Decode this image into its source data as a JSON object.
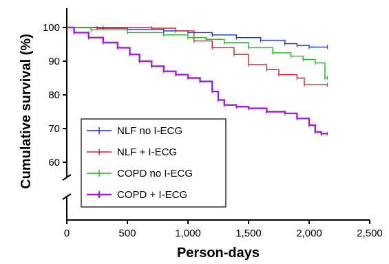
{
  "chart_data": {
    "type": "line",
    "subtype": "kaplan-meier step curve with censor ticks",
    "xlabel": "Person-days",
    "ylabel": "Cumulative survival (%)",
    "xlim": [
      0,
      2500
    ],
    "ylim": [
      55,
      105
    ],
    "y_axis_break": true,
    "x_ticks": [
      0,
      500,
      1000,
      1500,
      2000,
      2500
    ],
    "x_tick_labels": [
      "0",
      "500",
      "1,000",
      "1,500",
      "2,000",
      "2,500"
    ],
    "y_ticks": [
      60,
      70,
      80,
      90,
      100
    ],
    "y_tick_labels": [
      "60",
      "70",
      "80",
      "90",
      "100"
    ],
    "grid": false,
    "legend_position": "bottom-left",
    "series": [
      {
        "name": "NLF no I-ECG",
        "color": "#1a2fd4",
        "x": [
          0,
          250,
          500,
          800,
          1000,
          1200,
          1400,
          1600,
          1800,
          1900,
          2000,
          2150
        ],
        "y": [
          100,
          99.8,
          99.4,
          99,
          98.5,
          97.8,
          97,
          96.2,
          95.2,
          94.7,
          94.2,
          94.2
        ]
      },
      {
        "name": "NLF + I-ECG",
        "color": "#d42020",
        "x": [
          0,
          300,
          700,
          900,
          1050,
          1200,
          1380,
          1500,
          1650,
          1750,
          1900,
          1960,
          2150
        ],
        "y": [
          100,
          100,
          99.8,
          99,
          96,
          94,
          92,
          89,
          87.5,
          86,
          85,
          83,
          83
        ]
      },
      {
        "name": "COPD no I-ECG",
        "color": "#18b818",
        "x": [
          0,
          200,
          500,
          800,
          1000,
          1150,
          1300,
          1500,
          1700,
          1850,
          1950,
          2050,
          2130,
          2150
        ],
        "y": [
          100,
          99.3,
          98.5,
          97.8,
          97,
          96.5,
          95.5,
          94,
          92.5,
          91.5,
          90.5,
          89.5,
          85,
          85
        ]
      },
      {
        "name": "COPD + I-ECG",
        "color": "#a020d8",
        "x": [
          0,
          60,
          180,
          300,
          420,
          520,
          600,
          700,
          800,
          900,
          1000,
          1100,
          1200,
          1250,
          1300,
          1400,
          1500,
          1650,
          1800,
          1900,
          2000,
          2050,
          2100,
          2150
        ],
        "y": [
          100,
          98.5,
          97,
          95.5,
          94,
          92,
          90,
          88.5,
          87,
          86,
          85,
          84,
          81,
          78.5,
          77,
          76.5,
          76,
          75,
          74.5,
          73,
          71,
          69,
          68.5,
          68.5
        ]
      }
    ]
  }
}
